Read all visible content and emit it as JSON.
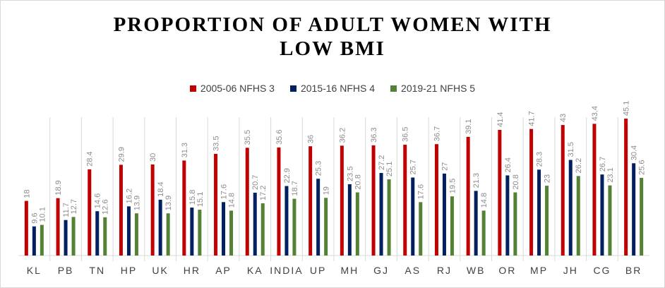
{
  "chart_data": {
    "type": "bar",
    "title_line1": "PROPORTION OF ADULT WOMEN WITH",
    "title_line2": "LOW BMI",
    "categories": [
      "KL",
      "PB",
      "TN",
      "HP",
      "UK",
      "HR",
      "AP",
      "KA",
      "INDIA",
      "UP",
      "MH",
      "GJ",
      "AS",
      "RJ",
      "WB",
      "OR",
      "MP",
      "JH",
      "CG",
      "BR"
    ],
    "series": [
      {
        "name": "2005-06 NFHS 3",
        "color": "#c00000",
        "values": [
          18,
          18.9,
          28.4,
          29.9,
          30,
          31.3,
          33.5,
          35.5,
          35.6,
          36,
          36.2,
          36.3,
          36.5,
          36.7,
          39.1,
          41.4,
          41.7,
          43,
          43.4,
          45.1
        ],
        "labels": [
          "18",
          "18.9",
          "28.4",
          "29.9",
          "30",
          "31.3",
          "33.5",
          "35.5",
          "35.6",
          "36",
          "36.2",
          "36.3",
          "36.5",
          "36.7",
          "39.1",
          "41.4",
          "41.7",
          "43",
          "43.4",
          "45.1"
        ]
      },
      {
        "name": "2015-16 NFHS 4",
        "color": "#002060",
        "values": [
          9.6,
          11.7,
          14.6,
          16.2,
          18.4,
          15.8,
          17.6,
          20.7,
          22.9,
          25.3,
          23.5,
          27.2,
          25.7,
          27,
          21.3,
          26.4,
          28.3,
          31.5,
          26.7,
          30.4
        ],
        "labels": [
          "9.6",
          "11.7",
          "14.6",
          "16.2",
          "18.4",
          "15.8",
          "17.6",
          "20.7",
          "22.9",
          "25.3",
          "23.5",
          "27.2",
          "25.7",
          "27",
          "21.3",
          "26.4",
          "28.3",
          "31.5",
          "26.7",
          "30.4"
        ]
      },
      {
        "name": "2019-21 NFHS 5",
        "color": "#548235",
        "values": [
          10.1,
          12.7,
          12.6,
          13.9,
          13.9,
          15.1,
          14.8,
          17.2,
          18.7,
          19,
          20.8,
          25.1,
          17.6,
          19.5,
          14.8,
          20.8,
          23,
          26.2,
          23.1,
          25.6
        ],
        "labels": [
          "10.1",
          "12.7",
          "12.6",
          "13.9",
          "13.9",
          "15.1",
          "14.8",
          "17.2",
          "18.7",
          "19",
          "20.8",
          "25.1",
          "17.6",
          "19.5",
          "14.8",
          "20.8",
          "23",
          "26.2",
          "23.1",
          "25.6"
        ]
      }
    ],
    "legend_position": "top",
    "ylim": [
      0,
      50
    ],
    "grid": false
  }
}
